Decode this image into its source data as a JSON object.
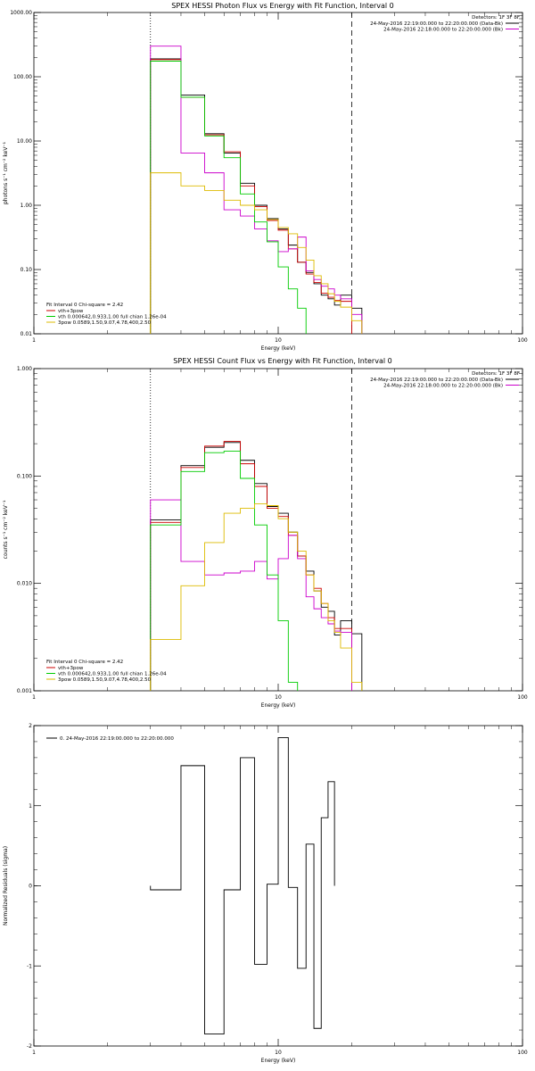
{
  "chart_data": [
    {
      "type": "line",
      "title": "SPEX HESSI Photon Flux vs Energy with Fit Function, Interval 0",
      "xlabel": "Energy (keV)",
      "ylabel": "photons s⁻¹ cm⁻² keV⁻¹",
      "xscale": "log",
      "yscale": "log",
      "xlim": [
        1,
        100
      ],
      "ylim": [
        0.01,
        1000
      ],
      "xticks": [
        "1",
        "10",
        "100"
      ],
      "yticks": [
        "0.01",
        "0.10",
        "1.00",
        "10.00",
        "100.00",
        "1000.00"
      ],
      "detectors_text": "Detectors: 1F 3F 8F",
      "header_lines": [
        {
          "text": "24-May-2016 22:19:00.000 to 22:20:00.000 (Data-Bk)",
          "color": "#000000"
        },
        {
          "text": "24-May-2016 22:18:00.000 to 22:20:00.000 (Bk)",
          "color": "#cc00cc"
        }
      ],
      "fit_label": "Fit Interval 0   Chi-square = 2.42",
      "legend": [
        {
          "text": "vth+3pow",
          "color": "#cc0000"
        },
        {
          "text": "vth 0.000642,0.933,1.00  full chian 1.26e-04",
          "color": "#00cc00"
        },
        {
          "text": "3pow 0.0589,1.50,9.07,4.78,400,2.50",
          "color": "#ddbb00"
        }
      ],
      "vlines": [
        {
          "x": 3,
          "style": "dotted"
        },
        {
          "x": 20,
          "style": "dashed"
        }
      ],
      "bin_edges": [
        3,
        4,
        5,
        6,
        7,
        8,
        9,
        10,
        11,
        12,
        13,
        14,
        15,
        16,
        17,
        18,
        20,
        22
      ],
      "series": [
        {
          "key": "data",
          "color": "#000000",
          "values": [
            190,
            52,
            13,
            6.5,
            2.2,
            1.0,
            0.62,
            0.43,
            0.24,
            0.13,
            0.09,
            0.06,
            0.04,
            0.035,
            0.028,
            0.04,
            0.025
          ]
        },
        {
          "key": "total",
          "color": "#cc0000",
          "values": [
            185,
            48,
            12.5,
            6.8,
            2.0,
            0.95,
            0.58,
            0.41,
            0.21,
            0.13,
            0.085,
            0.063,
            0.043,
            0.037,
            0.033,
            0.032,
            null
          ]
        },
        {
          "key": "background",
          "color": "#cc00cc",
          "values": [
            300,
            6.5,
            3.2,
            0.85,
            0.68,
            0.43,
            0.28,
            0.19,
            0.21,
            0.32,
            0.095,
            0.07,
            0.055,
            0.05,
            0.04,
            0.035,
            0.02
          ]
        },
        {
          "key": "thermal",
          "color": "#00cc00",
          "values": [
            175,
            48,
            12,
            5.5,
            1.5,
            0.55,
            0.27,
            0.11,
            0.05,
            0.025,
            null,
            null,
            null,
            null,
            null,
            null,
            null
          ]
        },
        {
          "key": "powerlaw",
          "color": "#ddbb00",
          "values": [
            3.2,
            2.0,
            1.7,
            1.2,
            1.0,
            0.85,
            0.6,
            0.45,
            0.36,
            0.22,
            0.14,
            0.08,
            0.06,
            0.042,
            0.032,
            0.026,
            0.016
          ]
        }
      ]
    },
    {
      "type": "line",
      "title": "SPEX HESSI Count Flux vs Energy with Fit Function, Interval 0",
      "xlabel": "Energy (keV)",
      "ylabel": "counts s⁻¹ cm⁻² keV⁻¹",
      "xscale": "log",
      "yscale": "log",
      "xlim": [
        1,
        100
      ],
      "ylim": [
        0.001,
        1
      ],
      "xticks": [
        "1",
        "10",
        "100"
      ],
      "yticks": [
        "0.001",
        "0.010",
        "0.100",
        "1.000"
      ],
      "detectors_text": "Detectors: 1F 3F 8F",
      "header_lines": [
        {
          "text": "24-May-2016 22:19:00.000 to 22:20:00.000 (Data-Bk)",
          "color": "#000000"
        },
        {
          "text": "24-May-2016 22:18:00.000 to 22:20:00.000 (Bk)",
          "color": "#cc00cc"
        }
      ],
      "fit_label": "Fit Interval 0   Chi-square = 2.42",
      "legend": [
        {
          "text": "vth+3pow",
          "color": "#cc0000"
        },
        {
          "text": "vth 0.000642,0.933,1.00  full chian 1.26e-04",
          "color": "#00cc00"
        },
        {
          "text": "3pow 0.0589,1.50,9.07,4.78,400,2.50",
          "color": "#ddbb00"
        }
      ],
      "vlines": [
        {
          "x": 3,
          "style": "dotted"
        },
        {
          "x": 20,
          "style": "dashed"
        }
      ],
      "bin_edges": [
        3,
        4,
        5,
        6,
        7,
        8,
        9,
        10,
        11,
        12,
        13,
        14,
        15,
        16,
        17,
        18,
        20,
        22
      ],
      "series": [
        {
          "key": "data",
          "color": "#000000",
          "values": [
            0.039,
            0.125,
            0.185,
            0.205,
            0.14,
            0.085,
            0.052,
            0.045,
            0.03,
            0.018,
            0.013,
            0.0085,
            0.006,
            0.0055,
            0.0033,
            0.0045,
            0.0034
          ]
        },
        {
          "key": "total",
          "color": "#cc0000",
          "values": [
            0.037,
            0.12,
            0.19,
            0.21,
            0.13,
            0.08,
            0.05,
            0.042,
            0.028,
            0.018,
            0.012,
            0.009,
            0.0065,
            0.0048,
            0.0038,
            0.0038,
            null
          ]
        },
        {
          "key": "background",
          "color": "#cc00cc",
          "values": [
            0.06,
            0.016,
            0.012,
            0.0125,
            0.013,
            0.016,
            0.011,
            0.017,
            0.028,
            0.017,
            0.0075,
            0.0058,
            0.0048,
            0.0042,
            0.0036,
            0.0035,
            null
          ]
        },
        {
          "key": "thermal",
          "color": "#00cc00",
          "values": [
            0.035,
            0.11,
            0.165,
            0.17,
            0.095,
            0.035,
            0.012,
            0.0045,
            0.0012,
            null,
            null,
            null,
            null,
            null,
            null,
            null,
            null
          ]
        },
        {
          "key": "powerlaw",
          "color": "#ddbb00",
          "values": [
            0.003,
            0.0095,
            0.024,
            0.045,
            0.05,
            0.055,
            0.053,
            0.04,
            0.03,
            0.02,
            0.012,
            0.0085,
            0.0065,
            0.0045,
            0.0035,
            0.0025,
            0.0012
          ]
        }
      ]
    },
    {
      "type": "line",
      "title": "",
      "xlabel": "Energy (keV)",
      "ylabel": "Normalized Residuals (sigma)",
      "xscale": "log",
      "yscale": "linear",
      "xlim": [
        1,
        100
      ],
      "ylim": [
        -2,
        2
      ],
      "xticks": [
        "1",
        "10",
        "100"
      ],
      "yticks": [
        "-2",
        "-1",
        "0",
        "1",
        "2"
      ],
      "legend_line": "0. 24-May-2016 22:19:00.000 to 22:20:00.000",
      "bin_edges": [
        3,
        4,
        5,
        6,
        7,
        8,
        9,
        10,
        11,
        12,
        13,
        14,
        15,
        16,
        17,
        18,
        20
      ],
      "series": [
        {
          "key": "residuals",
          "color": "#000000",
          "values": [
            -0.05,
            1.5,
            -1.85,
            -0.05,
            1.6,
            -0.98,
            0.02,
            1.85,
            -0.02,
            -1.03,
            0.52,
            -1.78,
            0.85,
            1.3,
            null,
            null
          ]
        }
      ]
    }
  ]
}
